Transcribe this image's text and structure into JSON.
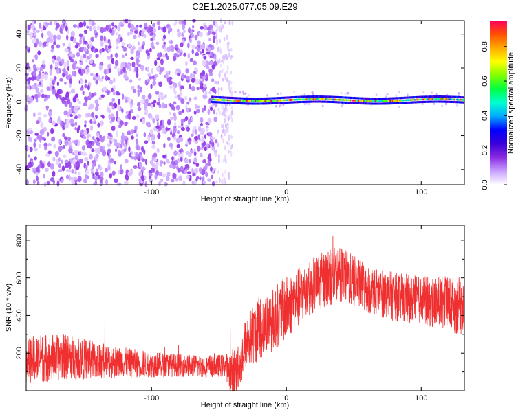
{
  "figure": {
    "title": "C2E1.2025.077.05.09.E29",
    "colors": {
      "snr_line": "#f03030",
      "frame": "#000000",
      "background": "#ffffff"
    }
  },
  "chart_data": [
    {
      "type": "heatmap",
      "xlabel": "Height of straight line (km)",
      "ylabel": "Frequency (Hz)",
      "xlim": [
        -193,
        132
      ],
      "ylim": [
        -49,
        48
      ],
      "xticks": [
        -100,
        0,
        100
      ],
      "yticks": [
        -40,
        -20,
        0,
        20,
        40
      ],
      "colorbar": {
        "label": "Normalized spectral amplitude",
        "range": [
          0,
          0.95
        ],
        "ticks": [
          0.0,
          0.2,
          0.4,
          0.6,
          0.8
        ],
        "colormap": [
          "#ffffff",
          "#c8a0ff",
          "#8a2be2",
          "#3a00d8",
          "#0000ff",
          "#00aaff",
          "#00ffd0",
          "#00ff40",
          "#80ff00",
          "#ffff00",
          "#ffaa00",
          "#ff5000",
          "#ff0060"
        ]
      },
      "description_regions": [
        {
          "x_range": [
            -193,
            -52
          ],
          "f_range": [
            -49,
            48
          ],
          "amplitude": "scattered 0.05-0.15"
        },
        {
          "x_range": [
            -52,
            -40
          ],
          "f_range": [
            -49,
            48
          ],
          "amplitude": "sparse 0.02-0.06"
        },
        {
          "x_range": [
            -55,
            132
          ],
          "f_range": [
            -1,
            3
          ],
          "amplitude": "narrow band 0.3-0.95"
        }
      ]
    },
    {
      "type": "line",
      "xlabel": "Height of straight line (km)",
      "ylabel": "SNR (10 * v/v)",
      "xlim": [
        -193,
        132
      ],
      "ylim": [
        0,
        880
      ],
      "xticks": [
        -100,
        0,
        100
      ],
      "yticks": [
        200,
        400,
        600,
        800
      ],
      "series": [
        {
          "x": [
            -193,
            -180,
            -160,
            -140,
            -120,
            -100,
            -80,
            -60,
            -45,
            -40,
            -35,
            -30,
            -20,
            -10,
            0,
            10,
            20,
            30,
            40,
            50,
            60,
            70,
            80,
            90,
            100,
            110,
            120,
            132
          ],
          "center": [
            160,
            175,
            180,
            160,
            150,
            140,
            135,
            130,
            135,
            80,
            120,
            260,
            330,
            380,
            440,
            500,
            560,
            600,
            620,
            580,
            540,
            520,
            500,
            490,
            480,
            470,
            460,
            450
          ],
          "spread": [
            120,
            130,
            120,
            100,
            80,
            70,
            60,
            60,
            60,
            150,
            120,
            150,
            170,
            170,
            170,
            160,
            150,
            150,
            150,
            140,
            130,
            130,
            130,
            130,
            130,
            140,
            150,
            160
          ]
        }
      ]
    }
  ]
}
